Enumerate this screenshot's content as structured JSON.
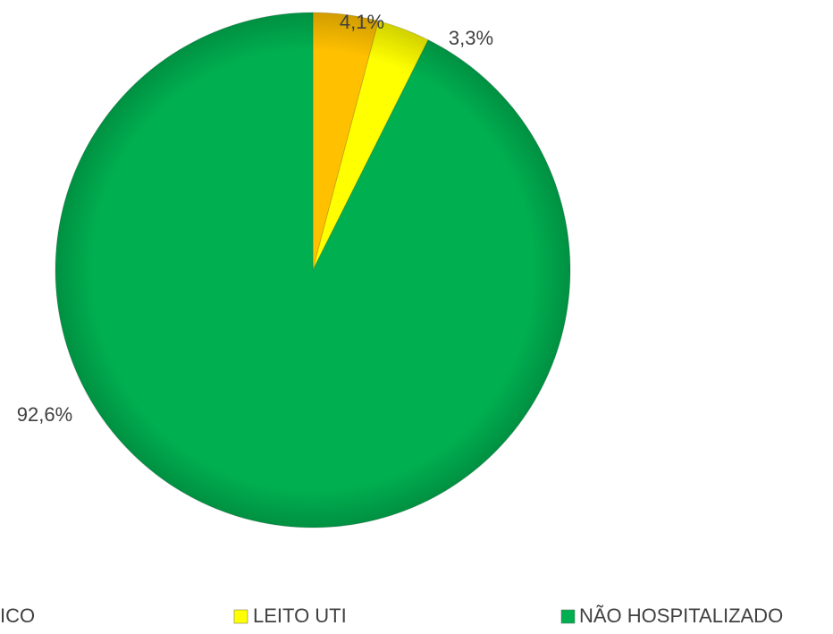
{
  "chart_data": {
    "type": "pie",
    "categories": [
      "ICO",
      "LEITO UTI",
      "NÃO HOSPITALIZADO"
    ],
    "values": [
      4.1,
      3.3,
      92.6
    ],
    "value_labels": [
      "4,1%",
      "3,3%",
      "92,6%"
    ],
    "colors": [
      "#FFC000",
      "#FFFF00",
      "#00B050"
    ],
    "legend": "bottom"
  }
}
